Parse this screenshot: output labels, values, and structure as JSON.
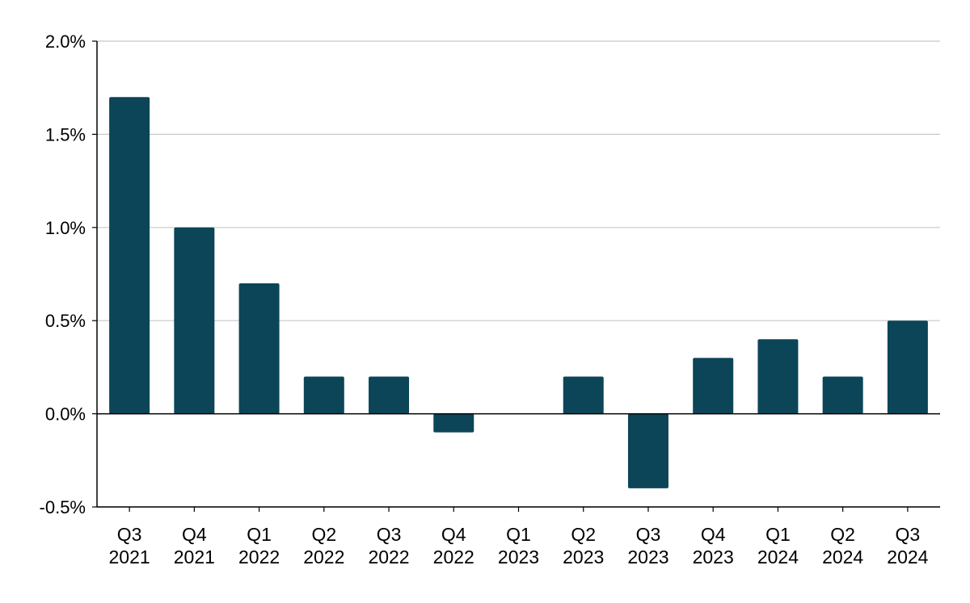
{
  "chart_data": {
    "type": "bar",
    "title": "",
    "xlabel": "",
    "ylabel": "",
    "categories": [
      [
        "Q3",
        "2021"
      ],
      [
        "Q4",
        "2021"
      ],
      [
        "Q1",
        "2022"
      ],
      [
        "Q2",
        "2022"
      ],
      [
        "Q3",
        "2022"
      ],
      [
        "Q4",
        "2022"
      ],
      [
        "Q1",
        "2023"
      ],
      [
        "Q2",
        "2023"
      ],
      [
        "Q3",
        "2023"
      ],
      [
        "Q4",
        "2023"
      ],
      [
        "Q1",
        "2024"
      ],
      [
        "Q2",
        "2024"
      ],
      [
        "Q3",
        "2024"
      ]
    ],
    "values": [
      1.7,
      1.0,
      0.7,
      0.2,
      0.2,
      -0.1,
      0.0,
      0.2,
      -0.4,
      0.3,
      0.4,
      0.2,
      0.5
    ],
    "ylim": [
      -0.5,
      2.0
    ],
    "yticks": [
      -0.5,
      0.0,
      0.5,
      1.0,
      1.5,
      2.0
    ],
    "ytick_labels": [
      "-0.5%",
      "0.0%",
      "0.5%",
      "1.0%",
      "1.5%",
      "2.0%"
    ],
    "grid": true,
    "legend": "none",
    "bar_color": "#0c4558",
    "grid_color": "#c8c8c8",
    "axis_color": "#000000"
  }
}
